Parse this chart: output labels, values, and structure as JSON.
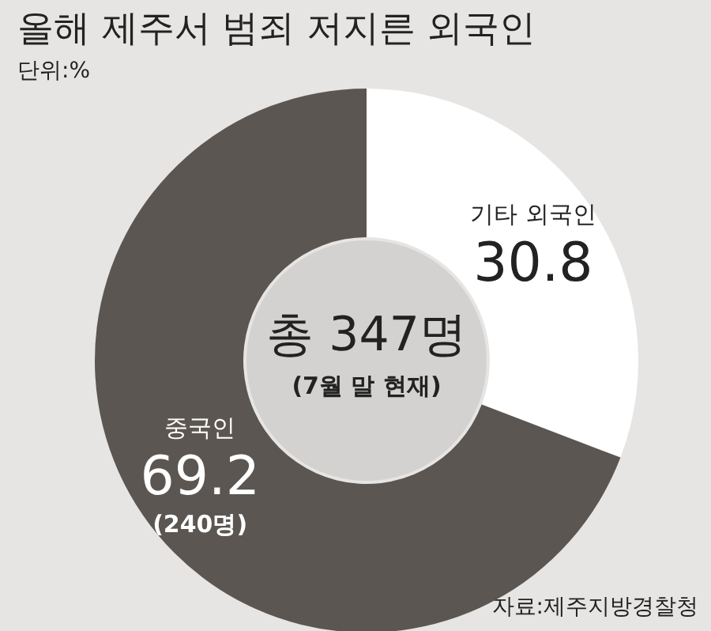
{
  "chart_data": {
    "type": "donut",
    "title": "올해 제주서 범죄 저지른 외국인",
    "subtitle": "단위:%",
    "categories": [
      "기타 외국인",
      "중국인"
    ],
    "values": [
      30.8,
      69.2
    ],
    "colors": [
      "#ffffff",
      "#5b5651"
    ],
    "value_labels": [
      "30.8",
      "69.2\n(240명)"
    ],
    "annotations": [
      "총 347명",
      "(7월 말 현재)",
      "자료:제주지방경찰청"
    ],
    "legend": false
  }
}
